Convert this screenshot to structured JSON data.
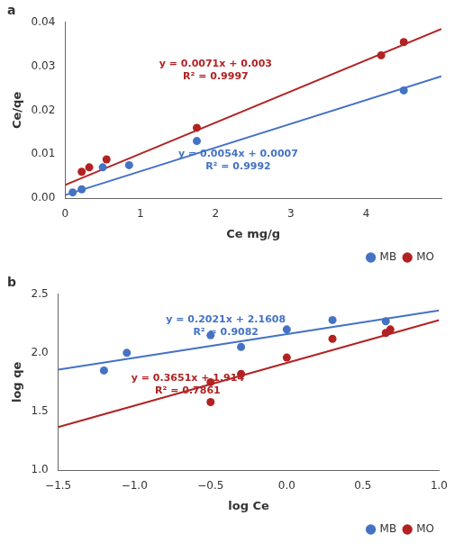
{
  "chart_data": [
    {
      "type": "scatter",
      "title": "a",
      "xlabel": "Ce mg/g",
      "ylabel": "Ce/qe",
      "xlim": [
        0,
        5
      ],
      "ylim": [
        0,
        0.04
      ],
      "xticks": [
        0,
        1,
        2,
        3,
        4
      ],
      "yticks": [
        {
          "value": 0,
          "label": "0.00"
        },
        0.01,
        0.02,
        0.03,
        0.04
      ],
      "grid": false,
      "legend": "lower right",
      "series": [
        {
          "name": "MB",
          "color": "#4472C4",
          "marker": "circle",
          "x": [
            0.1,
            0.22,
            0.5,
            0.85,
            1.75,
            4.5
          ],
          "values": [
            0.0013,
            0.002,
            0.007,
            0.0075,
            0.013,
            0.0245
          ],
          "fit": {
            "x": [
              0,
              5
            ],
            "values": [
              0.0007,
              0.0277
            ],
            "line_style": "solid"
          }
        },
        {
          "name": "MO",
          "color": "#B22222",
          "marker": "circle",
          "x": [
            0.22,
            0.32,
            0.55,
            1.75,
            4.2,
            4.5
          ],
          "values": [
            0.006,
            0.007,
            0.0088,
            0.016,
            0.0325,
            0.0355
          ],
          "fit": {
            "x": [
              0,
              5
            ],
            "values": [
              0.003,
              0.0385
            ],
            "line_style": "solid"
          }
        }
      ],
      "annotations": [
        {
          "text": "y = 0.0071x + 0.003\nR² = 0.9997",
          "x": 2.0,
          "y": 0.029,
          "color": "#B22222"
        },
        {
          "text": "y = 0.0054x + 0.0007\nR² = 0.9992",
          "x": 2.3,
          "y": 0.0085,
          "color": "#4472C4"
        }
      ]
    },
    {
      "type": "scatter",
      "title": "b",
      "xlabel": "log Ce",
      "ylabel": "log qe",
      "xlim": [
        -1.5,
        1.0
      ],
      "ylim": [
        1.0,
        2.5
      ],
      "xticks": [
        {
          "value": -1.5,
          "label": "−1.5"
        },
        {
          "value": -1.0,
          "label": "−1.0"
        },
        {
          "value": -0.5,
          "label": "−0.5"
        },
        {
          "value": 0.0,
          "label": "0.0"
        },
        0.5,
        {
          "value": 1.0,
          "label": "1.0"
        }
      ],
      "yticks": [
        {
          "value": 1.0,
          "label": "1.0"
        },
        1.5,
        {
          "value": 2.0,
          "label": "2.0"
        },
        2.5
      ],
      "grid": false,
      "legend": "lower right",
      "series": [
        {
          "name": "MB",
          "color": "#4472C4",
          "marker": "circle",
          "x": [
            -1.2,
            -1.05,
            -0.5,
            -0.3,
            0.0,
            0.3,
            0.65
          ],
          "values": [
            1.85,
            2.0,
            2.15,
            2.05,
            2.2,
            2.28,
            2.27
          ],
          "fit": {
            "x": [
              -1.5,
              1.0
            ],
            "values": [
              1.85765,
              2.3629
            ],
            "line_style": "solid"
          }
        },
        {
          "name": "MO",
          "color": "#B22222",
          "marker": "circle",
          "x": [
            -0.5,
            -0.5,
            -0.3,
            0.0,
            0.3,
            0.65,
            0.68
          ],
          "values": [
            1.58,
            1.75,
            1.82,
            1.96,
            2.12,
            2.17,
            2.2
          ],
          "fit": {
            "x": [
              -1.5,
              1.0
            ],
            "values": [
              1.36635,
              2.2791
            ],
            "line_style": "solid"
          }
        }
      ],
      "annotations": [
        {
          "text": "y = 0.2021x + 2.1608\nR² = 0.9082",
          "x": -0.4,
          "y": 2.23,
          "color": "#4472C4"
        },
        {
          "text": "y = 0.3651x + 1.914\nR² = 0.7861",
          "x": -0.65,
          "y": 1.73,
          "color": "#B22222"
        }
      ]
    }
  ]
}
